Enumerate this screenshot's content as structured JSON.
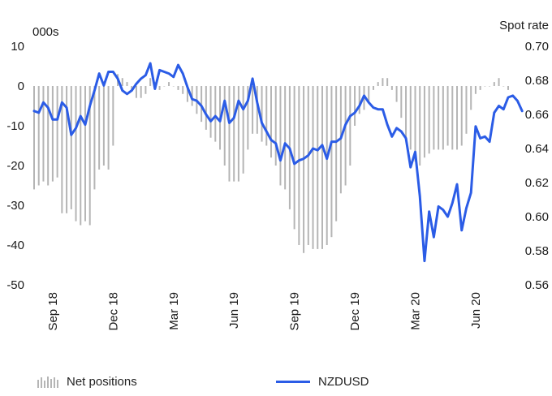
{
  "chart_data": {
    "type": "bar+line",
    "left_axis": {
      "unit_label": "000s",
      "ylim": [
        -50,
        10
      ],
      "ticks": [
        10,
        0,
        -10,
        -20,
        -30,
        -40,
        -50
      ]
    },
    "right_axis": {
      "unit_label": "Spot rate",
      "ylim": [
        0.56,
        0.7
      ],
      "ticks": [
        "0.70",
        "0.68",
        "0.66",
        "0.64",
        "0.62",
        "0.60",
        "0.58",
        "0.56"
      ]
    },
    "x_ticks": [
      "Sep 18",
      "Dec 18",
      "Mar 19",
      "Jun 19",
      "Sep 19",
      "Dec 19",
      "Mar 20",
      "Jun 20"
    ],
    "x_tick_index": [
      4,
      17,
      30,
      43,
      56,
      69,
      82,
      95
    ],
    "series": [
      {
        "name": "Net positions",
        "kind": "bar",
        "axis": "left",
        "color": "#b5b5b5",
        "values": [
          -26,
          -25,
          -24,
          -25,
          -24,
          -23,
          -32,
          -32,
          -31,
          -34,
          -35,
          -34,
          -35,
          -26,
          -21,
          -20,
          -21,
          -15,
          3,
          2,
          1,
          -1,
          -3,
          -3,
          -2,
          2,
          1,
          -1,
          0,
          1,
          0,
          -1,
          -2,
          -4,
          -5,
          -7,
          -9,
          -11,
          -13,
          -14,
          -16,
          -20,
          -24,
          -24,
          -24,
          -22,
          -16,
          -12,
          -12,
          -14,
          -15,
          -18,
          -20,
          -25,
          -26,
          -31,
          -36,
          -40,
          -42,
          -40,
          -41,
          -41,
          -41,
          -40,
          -38,
          -34,
          -27,
          -25,
          -20,
          -10,
          -7,
          -6,
          -4,
          -1,
          1,
          2,
          2,
          -1,
          -4,
          -8,
          -13,
          -16,
          -19,
          -20,
          -18,
          -17,
          -16,
          -16,
          -16,
          -15,
          -16,
          -16,
          -15,
          -12,
          -6,
          -2,
          -1,
          0,
          0,
          1,
          2,
          0,
          -1
        ]
      },
      {
        "name": "NZDUSD",
        "kind": "line",
        "axis": "right",
        "color": "#2b5ce6",
        "values": [
          0.662,
          0.661,
          0.667,
          0.664,
          0.657,
          0.657,
          0.667,
          0.664,
          0.648,
          0.652,
          0.659,
          0.654,
          0.665,
          0.674,
          0.684,
          0.677,
          0.685,
          0.685,
          0.681,
          0.674,
          0.672,
          0.674,
          0.678,
          0.681,
          0.683,
          0.69,
          0.675,
          0.686,
          0.685,
          0.684,
          0.682,
          0.689,
          0.684,
          0.676,
          0.669,
          0.668,
          0.665,
          0.66,
          0.656,
          0.659,
          0.656,
          0.668,
          0.655,
          0.658,
          0.668,
          0.663,
          0.668,
          0.681,
          0.667,
          0.655,
          0.65,
          0.645,
          0.643,
          0.633,
          0.643,
          0.64,
          0.631,
          0.633,
          0.634,
          0.636,
          0.64,
          0.639,
          0.642,
          0.634,
          0.644,
          0.644,
          0.646,
          0.654,
          0.659,
          0.661,
          0.665,
          0.671,
          0.667,
          0.664,
          0.663,
          0.663,
          0.654,
          0.647,
          0.652,
          0.65,
          0.646,
          0.629,
          0.638,
          0.612,
          0.574,
          0.603,
          0.588,
          0.606,
          0.604,
          0.6,
          0.608,
          0.619,
          0.592,
          0.605,
          0.614,
          0.653,
          0.646,
          0.647,
          0.644,
          0.661,
          0.665,
          0.663,
          0.67,
          0.671,
          0.668,
          0.662
        ]
      }
    ],
    "legend": {
      "placement": "bottom"
    }
  }
}
